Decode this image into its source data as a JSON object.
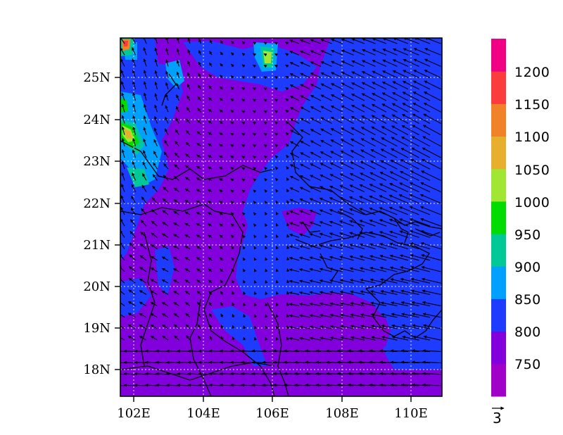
{
  "map": {
    "lon_ticks": [
      "102E",
      "104E",
      "106E",
      "108E",
      "110E"
    ],
    "lat_ticks": [
      "18N",
      "19N",
      "20N",
      "21N",
      "22N",
      "23N",
      "24N",
      "25N"
    ],
    "lon_range": [
      101.85,
      110.85
    ],
    "lat_range": [
      17.4,
      25.95
    ],
    "grid": "dotted",
    "fill_field": {
      "background_level": "750",
      "east_region_level": "800",
      "northwest_patches": [
        "850",
        "900",
        "950",
        "1000",
        "1050",
        "1100",
        "1150"
      ]
    },
    "vector_field": {
      "arrow_color": "#000000",
      "reference_label": "3",
      "west_direction": "mostly westward / northwestward",
      "east_direction": "westward to northwestward, strongest near 108E-111E"
    }
  },
  "colorbar": {
    "labels": [
      "750",
      "800",
      "850",
      "900",
      "950",
      "1000",
      "1050",
      "1100",
      "1150",
      "1200"
    ],
    "colors": [
      "#a000c8",
      "#8200dc",
      "#1e3cff",
      "#00a0ff",
      "#00c896",
      "#00dc00",
      "#a0e632",
      "#e6af2d",
      "#f08228",
      "#fa3c3c",
      "#f00082"
    ]
  }
}
